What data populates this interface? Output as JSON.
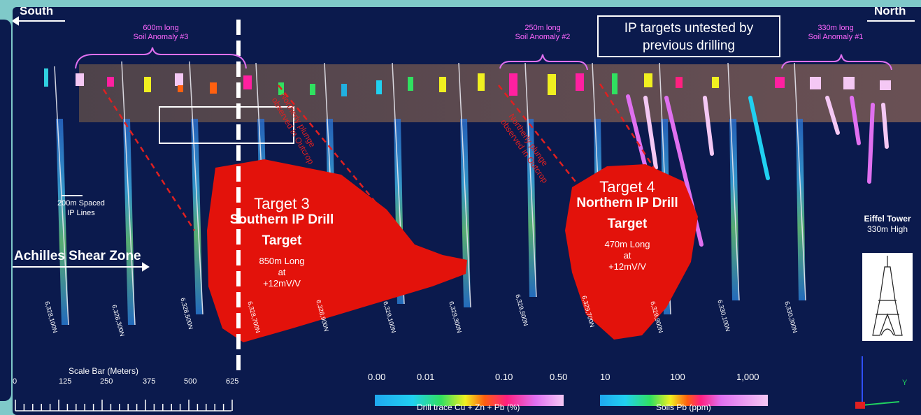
{
  "heading_partial": "...g...    ...g...(...g)",
  "directions": {
    "south": "South",
    "north": "North"
  },
  "soil_anomalies": [
    {
      "line1": "600m long",
      "line2": "Soil Anomaly #3"
    },
    {
      "line1": "250m long",
      "line2": "Soil Anomaly #2"
    },
    {
      "line1": "330m long",
      "line2": "Soil Anomaly #1"
    }
  ],
  "untested_box": {
    "line1": "IP targets untested by",
    "line2": "previous drilling"
  },
  "plunge_labels": [
    {
      "line1": "Northerly plunge",
      "line2": "observed in Outcrop"
    },
    {
      "line1": "Northerly plunge",
      "line2": "observed in Outcrop"
    }
  ],
  "target3": {
    "title": "Target 3",
    "sub1": "Southern IP Drill",
    "sub2": "Target",
    "stat1": "850m Long",
    "stat2": "at",
    "stat3": "+12mV/V"
  },
  "target4": {
    "title": "Target 4",
    "sub1": "Northern IP Drill",
    "sub2": "Target",
    "stat1": "470m Long",
    "stat2": "at",
    "stat3": "+12mV/V"
  },
  "ip_spacing": {
    "line1": "200m Spaced",
    "line2": "IP Lines"
  },
  "shear_zone": "Achilles Shear Zone",
  "northings": [
    "6,328,100N",
    "6,328,300N",
    "6,328,500N",
    "6,328,700N",
    "6,328,900N",
    "6,329,100N",
    "6,329,300N",
    "6,329,500N",
    "6,329,700N",
    "6,329,900N",
    "6,330,100N",
    "6,330,300N"
  ],
  "scale_bar": {
    "title": "Scale Bar (Meters)",
    "ticks": [
      "0",
      "125",
      "250",
      "375",
      "500",
      "625"
    ]
  },
  "drill_legend": {
    "title": "Drill trace Cu + Zn + Pb (%)",
    "ticks": [
      "0.00",
      "0.01",
      "0.10",
      "0.50"
    ]
  },
  "soil_legend": {
    "title": "Soils Pb (ppm)",
    "ticks": [
      "10",
      "100",
      "1,000"
    ]
  },
  "eiffel": {
    "line1": "Eiffel Tower",
    "line2": "330m High"
  },
  "axis_label": "Y",
  "colors": {
    "background": "#0b1a4d",
    "target": "#e3120b",
    "soil_text": "#ff66ff",
    "plunge": "#e02020"
  }
}
